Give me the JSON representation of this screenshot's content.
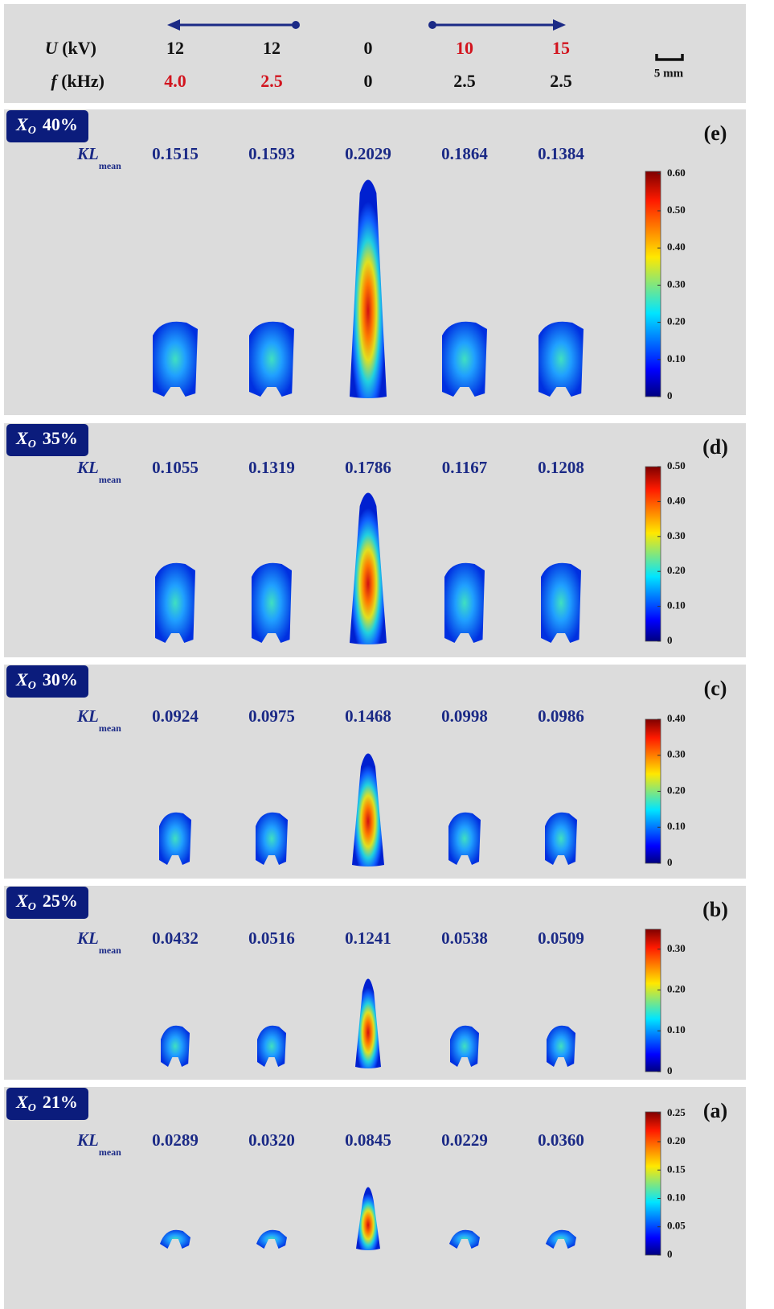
{
  "header": {
    "u_symbol": "U",
    "u_unit": "(kV)",
    "f_symbol": "f",
    "f_unit": "(kHz)",
    "u_values": [
      "12",
      "12",
      "0",
      "10",
      "15"
    ],
    "f_values": [
      "4.0",
      "2.5",
      "0",
      "2.5",
      "2.5"
    ],
    "scale_bar": "5 mm"
  },
  "labels": {
    "x_symbol": "X",
    "x_subscript": "O",
    "kl_symbol": "KL",
    "kl_subscript": "mean"
  },
  "panels": [
    {
      "letter": "(e)",
      "fraction": "40%",
      "kl_values": [
        "0.1515",
        "0.1593",
        "0.2029",
        "0.1864",
        "0.1384"
      ],
      "colorbar_ticks": [
        "0",
        "0.10",
        "0.20",
        "0.30",
        "0.40",
        "0.50",
        "0.60"
      ]
    },
    {
      "letter": "(d)",
      "fraction": "35%",
      "kl_values": [
        "0.1055",
        "0.1319",
        "0.1786",
        "0.1167",
        "0.1208"
      ],
      "colorbar_ticks": [
        "0",
        "0.10",
        "0.20",
        "0.30",
        "0.40",
        "0.50"
      ]
    },
    {
      "letter": "(c)",
      "fraction": "30%",
      "kl_values": [
        "0.0924",
        "0.0975",
        "0.1468",
        "0.0998",
        "0.0986"
      ],
      "colorbar_ticks": [
        "0",
        "0.10",
        "0.20",
        "0.30",
        "0.40"
      ]
    },
    {
      "letter": "(b)",
      "fraction": "25%",
      "kl_values": [
        "0.0432",
        "0.0516",
        "0.1241",
        "0.0538",
        "0.0509"
      ],
      "colorbar_ticks": [
        "0",
        "0.10",
        "0.20",
        "0.30"
      ]
    },
    {
      "letter": "(a)",
      "fraction": "21%",
      "kl_values": [
        "0.0289",
        "0.0320",
        "0.0845",
        "0.0229",
        "0.0360"
      ],
      "colorbar_ticks": [
        "0",
        "0.05",
        "0.10",
        "0.15",
        "0.20",
        "0.25"
      ]
    }
  ]
}
